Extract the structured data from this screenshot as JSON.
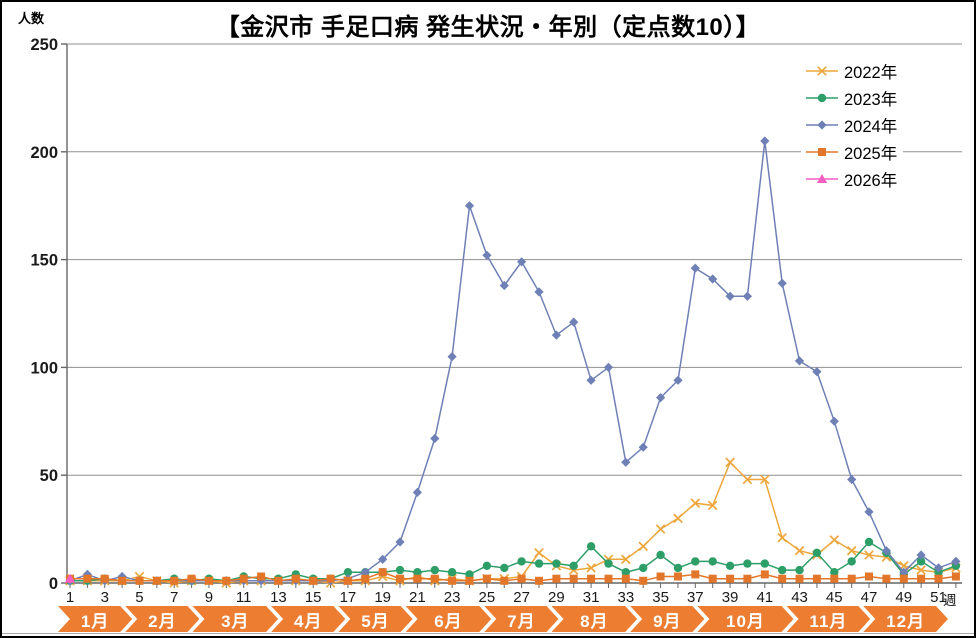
{
  "chart_data": {
    "type": "line",
    "title": "【金沢市 手足口病 発生状況・年別（定点数10）】",
    "ylabel": "人数",
    "xlabel": "週",
    "x": [
      1,
      2,
      3,
      4,
      5,
      6,
      7,
      8,
      9,
      10,
      11,
      12,
      13,
      14,
      15,
      16,
      17,
      18,
      19,
      20,
      21,
      22,
      23,
      24,
      25,
      26,
      27,
      28,
      29,
      30,
      31,
      32,
      33,
      34,
      35,
      36,
      37,
      38,
      39,
      40,
      41,
      42,
      43,
      44,
      45,
      46,
      47,
      48,
      49,
      50,
      51,
      52
    ],
    "x_tick_labels": [
      "1",
      "3",
      "5",
      "7",
      "9",
      "11",
      "13",
      "15",
      "17",
      "19",
      "21",
      "23",
      "25",
      "27",
      "29",
      "31",
      "33",
      "35",
      "37",
      "39",
      "41",
      "43",
      "45",
      "47",
      "49",
      "51"
    ],
    "y_ticks": [
      0,
      50,
      100,
      150,
      200,
      250
    ],
    "ylim": [
      0,
      250
    ],
    "grid": true,
    "legend_position": "upper-right",
    "series": [
      {
        "name": "2022年",
        "color": "#EDA63C",
        "marker": "x",
        "values": [
          1,
          1,
          1,
          1,
          3,
          1,
          0,
          1,
          1,
          0,
          1,
          1,
          1,
          1,
          1,
          0,
          1,
          1,
          3,
          1,
          3,
          1,
          2,
          1,
          2,
          2,
          3,
          14,
          8,
          6,
          7,
          11,
          11,
          17,
          25,
          30,
          37,
          36,
          56,
          48,
          48,
          21,
          15,
          13,
          20,
          15,
          13,
          12,
          8,
          6,
          5,
          7
        ]
      },
      {
        "name": "2023年",
        "color": "#2E9E68",
        "marker": "circle",
        "values": [
          1,
          1,
          2,
          1,
          1,
          1,
          2,
          1,
          2,
          1,
          3,
          2,
          2,
          4,
          2,
          2,
          5,
          5,
          5,
          6,
          5,
          6,
          5,
          4,
          8,
          7,
          10,
          9,
          9,
          8,
          17,
          9,
          5,
          7,
          13,
          7,
          10,
          10,
          8,
          9,
          9,
          6,
          6,
          14,
          5,
          10,
          19,
          14,
          4,
          10,
          5,
          8
        ]
      },
      {
        "name": "2024年",
        "color": "#6E80B5",
        "marker": "diamond",
        "values": [
          1,
          4,
          1,
          3,
          1,
          1,
          1,
          1,
          1,
          1,
          1,
          1,
          1,
          1,
          1,
          1,
          2,
          5,
          11,
          19,
          42,
          67,
          105,
          175,
          152,
          138,
          149,
          135,
          115,
          121,
          94,
          100,
          56,
          63,
          86,
          94,
          146,
          141,
          133,
          133,
          205,
          139,
          103,
          98,
          75,
          48,
          33,
          15,
          5,
          13,
          7,
          10
        ]
      },
      {
        "name": "2025年",
        "color": "#E2762B",
        "marker": "square",
        "values": [
          2,
          2,
          2,
          1,
          1,
          1,
          1,
          2,
          1,
          1,
          2,
          3,
          1,
          2,
          1,
          2,
          1,
          2,
          5,
          2,
          2,
          2,
          1,
          1,
          2,
          1,
          2,
          1,
          2,
          2,
          2,
          2,
          2,
          1,
          3,
          3,
          4,
          2,
          2,
          2,
          4,
          2,
          2,
          2,
          2,
          2,
          3,
          2,
          2,
          2,
          2,
          3
        ]
      },
      {
        "name": "2026年",
        "color": "#F45FC1",
        "marker": "triangle",
        "values": [
          2
        ]
      }
    ],
    "month_band": {
      "color": "#ED7D31",
      "months": [
        {
          "label": "1月",
          "weeks": 4
        },
        {
          "label": "2月",
          "weeks": 4
        },
        {
          "label": "3月",
          "weeks": 5
        },
        {
          "label": "4月",
          "weeks": 4
        },
        {
          "label": "5月",
          "weeks": 4
        },
        {
          "label": "6月",
          "weeks": 5
        },
        {
          "label": "7月",
          "weeks": 4
        },
        {
          "label": "8月",
          "weeks": 5
        },
        {
          "label": "9月",
          "weeks": 4
        },
        {
          "label": "10月",
          "weeks": 5
        },
        {
          "label": "11月",
          "weeks": 4
        },
        {
          "label": "12月",
          "weeks": 4
        }
      ]
    }
  },
  "colors": {
    "grid": "#8f8f8f",
    "axis": "#666666",
    "tick_text": "#1a1a1a",
    "month_text": "#ffffff",
    "frame_border": "#000000"
  }
}
